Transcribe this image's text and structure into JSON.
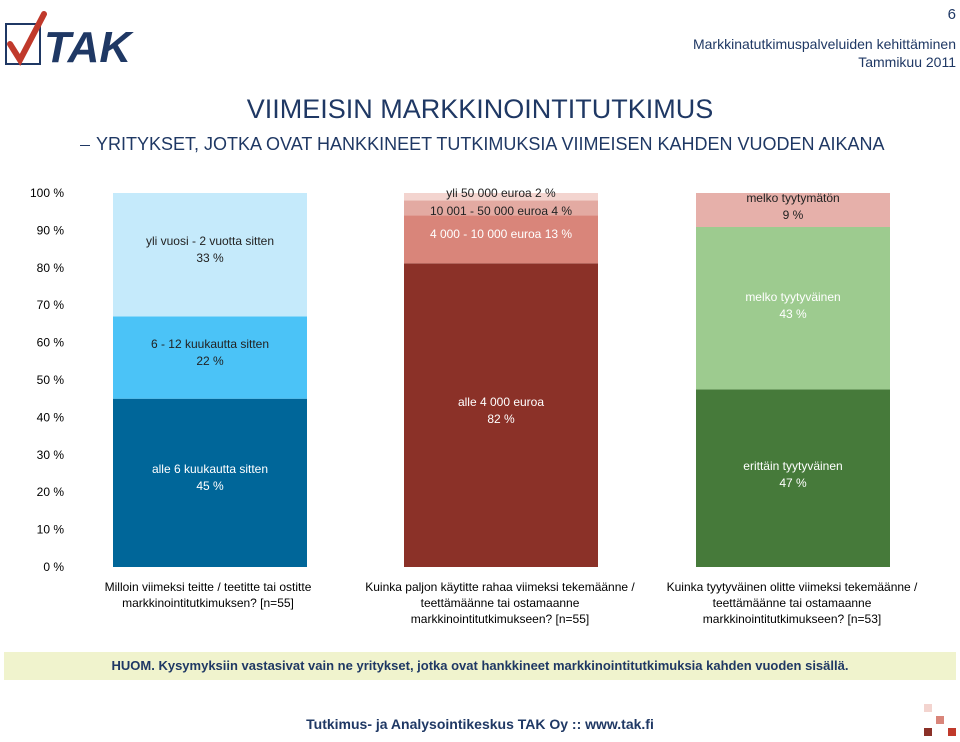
{
  "page": {
    "number": "6",
    "header_org": "Markkinatutkimuspalveluiden kehittäminen",
    "header_date": "Tammikuu 2011",
    "logo_text": "TAK",
    "title": "VIIMEISIN MARKKINOINTITUTKIMUS",
    "subtitle": "YRITYKSET, JOTKA OVAT HANKKINEET TUTKIMUKSIA VIIMEISEN KAHDEN VUODEN AIKANA",
    "note": "HUOM. Kysymyksiin vastasivat vain ne yritykset, jotka ovat hankkineet markkinointitutkimuksia kahden vuoden sisällä.",
    "footer": "Tutkimus- ja Analysointikeskus TAK Oy :: www.tak.fi"
  },
  "colors": {
    "title": "#1f3864",
    "note_bg": "#f0f3cd",
    "logo_red": "#c0392b",
    "logo_blue": "#1f3864"
  },
  "chart_data": {
    "type": "bar",
    "stacked": true,
    "normalized": true,
    "title": "",
    "xlabel": "",
    "ylabel": "",
    "ylim": [
      0,
      100
    ],
    "yticks": [
      "0 %",
      "10 %",
      "20 %",
      "30 %",
      "40 %",
      "50 %",
      "60 %",
      "70 %",
      "80 %",
      "90 %",
      "100 %"
    ],
    "bars": [
      {
        "category_lines": [
          "Milloin viimeksi teitte / teetitte tai ostitte",
          "markkinointitutkimuksen? [n=55]"
        ],
        "segments": [
          {
            "name": "alle 6 kuukautta sitten",
            "value": 45,
            "label": "45 %",
            "color": "#006699",
            "text": "light"
          },
          {
            "name": "6 - 12 kuukautta sitten",
            "value": 22,
            "label": "22 %",
            "color": "#4bc3f7",
            "text": "dark"
          },
          {
            "name": "yli vuosi - 2 vuotta sitten",
            "value": 33,
            "label": "33 %",
            "color": "#c5eafb",
            "text": "dark"
          }
        ]
      },
      {
        "category_lines": [
          "Kuinka paljon käytitte rahaa viimeksi tekemäänne /",
          "teettämäänne tai ostamaanne",
          "markkinointitutkimukseen? [n=55]"
        ],
        "segments": [
          {
            "name": "alle 4 000 euroa",
            "value": 82,
            "label": "82 %",
            "color": "#8b3128",
            "text": "light"
          },
          {
            "name": "4 000 - 10 000 euroa",
            "value": 13,
            "label": "13 %",
            "color": "#d9857a",
            "text": "light"
          },
          {
            "name": "10 001 - 50 000 euroa",
            "value": 4,
            "label": "4 %",
            "color": "#e3aaa2",
            "text": "dark"
          },
          {
            "name": "yli 50 000 euroa",
            "value": 2,
            "label": "2 %",
            "color": "#f3d4cf",
            "text": "dark"
          }
        ]
      },
      {
        "category_lines": [
          "Kuinka tyytyväinen olitte viimeksi tekemäänne /",
          "teettämäänne tai ostamaanne",
          "markkinointitutkimukseen? [n=53]"
        ],
        "segments": [
          {
            "name": "erittäin tyytyväinen",
            "value": 47,
            "label": "47 %",
            "color": "#467a3a",
            "text": "light"
          },
          {
            "name": "melko tyytyväinen",
            "value": 43,
            "label": "43 %",
            "color": "#9dcb8f",
            "text": "light"
          },
          {
            "name": "melko tyytymätön",
            "value": 9,
            "label": "9 %",
            "color": "#e6b0aa",
            "text": "dark"
          }
        ]
      }
    ]
  }
}
